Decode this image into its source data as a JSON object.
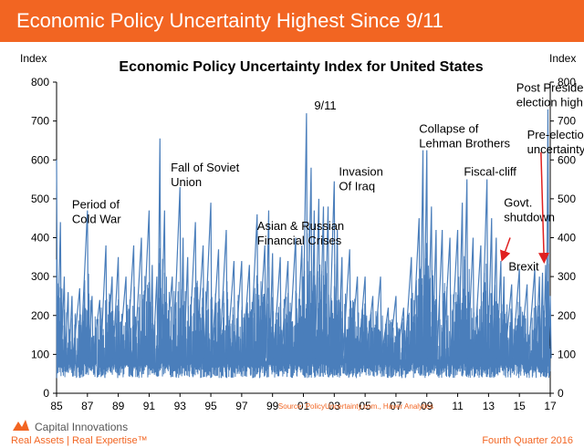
{
  "banner": {
    "title": "Economic Policy Uncertainty Highest Since 9/11"
  },
  "footer": {
    "brand": "Capital Innovations",
    "tagline": "Real Assets | Real Expertise™",
    "date": "Fourth Quarter 2016"
  },
  "colors": {
    "banner": "#f26522",
    "series": "#4a7ebb",
    "arrow": "#e02020",
    "text": "#000000"
  },
  "chart_data": {
    "type": "line",
    "title": "Economic Policy Uncertainty Index for United States",
    "ylabel_left": "Index",
    "ylabel_right": "Index",
    "xlabel": "",
    "source": "Source: PolicyUncertainty.com., Haver Analytics",
    "ylim": [
      0,
      800
    ],
    "yticks": [
      0,
      100,
      200,
      300,
      400,
      500,
      600,
      700,
      800
    ],
    "xlim": [
      1985,
      2017
    ],
    "xticks": [
      1985,
      1987,
      1989,
      1991,
      1993,
      1995,
      1997,
      1999,
      2001,
      2003,
      2005,
      2007,
      2009,
      2011,
      2013,
      2015,
      2017
    ],
    "xtick_labels": [
      "85",
      "87",
      "89",
      "91",
      "93",
      "95",
      "97",
      "99",
      "01",
      "03",
      "05",
      "07",
      "09",
      "11",
      "13",
      "15",
      "17"
    ],
    "grid": false,
    "series": [
      {
        "name": "Economic Policy Uncertainty Index",
        "x": [
          1985.0,
          1985.25,
          1985.5,
          1985.75,
          1986.0,
          1986.5,
          1987.0,
          1987.3,
          1987.8,
          1988.2,
          1988.6,
          1989.0,
          1989.5,
          1990.0,
          1990.5,
          1991.0,
          1991.2,
          1991.5,
          1991.7,
          1992.0,
          1992.5,
          1993.0,
          1993.2,
          1993.5,
          1994.0,
          1994.5,
          1995.0,
          1995.5,
          1996.0,
          1996.5,
          1997.0,
          1997.5,
          1998.0,
          1998.5,
          1998.75,
          1999.0,
          1999.5,
          2000.0,
          2000.5,
          2000.9,
          2001.2,
          2001.5,
          2001.7,
          2002.0,
          2002.3,
          2002.6,
          2003.0,
          2003.2,
          2003.5,
          2004.0,
          2004.5,
          2005.0,
          2005.5,
          2006.0,
          2006.5,
          2007.0,
          2007.5,
          2008.0,
          2008.5,
          2008.75,
          2009.0,
          2009.3,
          2009.6,
          2010.0,
          2010.5,
          2011.0,
          2011.3,
          2011.6,
          2012.0,
          2012.5,
          2012.9,
          2013.2,
          2013.5,
          2013.8,
          2014.0,
          2014.5,
          2015.0,
          2015.5,
          2016.0,
          2016.3,
          2016.5,
          2016.7,
          2016.85,
          2017.0
        ],
        "y": [
          600,
          440,
          300,
          260,
          250,
          270,
          470,
          250,
          240,
          380,
          300,
          350,
          300,
          380,
          400,
          470,
          330,
          300,
          655,
          470,
          300,
          530,
          400,
          350,
          440,
          380,
          490,
          370,
          420,
          340,
          340,
          330,
          460,
          380,
          470,
          360,
          350,
          340,
          400,
          380,
          720,
          580,
          470,
          500,
          480,
          480,
          545,
          420,
          350,
          370,
          300,
          300,
          250,
          300,
          220,
          250,
          220,
          350,
          450,
          625,
          625,
          480,
          420,
          420,
          400,
          420,
          490,
          550,
          400,
          380,
          550,
          450,
          400,
          340,
          300,
          280,
          320,
          280,
          320,
          300,
          310,
          330,
          730,
          250
        ]
      }
    ],
    "annotations": [
      {
        "text": "Period of Cold War",
        "x": 1986.0,
        "y": 475
      },
      {
        "text": "Fall of Soviet Union",
        "x": 1992.4,
        "y": 570
      },
      {
        "text": "Asian & Russian Financial Crises",
        "x": 1998.0,
        "y": 420
      },
      {
        "text": "9/11",
        "x": 2001.7,
        "y": 730
      },
      {
        "text": "Invasion Of Iraq",
        "x": 2003.3,
        "y": 560
      },
      {
        "text": "Collapse of Lehman Brothers",
        "x": 2008.5,
        "y": 670
      },
      {
        "text": "Fiscal-cliff",
        "x": 2011.4,
        "y": 560
      },
      {
        "text": "Post Presidential election high",
        "x": 2014.8,
        "y": 775
      },
      {
        "text": "Pre-election uncertainty",
        "x": 2015.5,
        "y": 655
      },
      {
        "text": "Govt. shutdown",
        "x": 2014.0,
        "y": 480
      },
      {
        "text": "Brexit",
        "x": 2014.3,
        "y": 315
      }
    ],
    "arrows": [
      {
        "from": [
          2014.4,
          400
        ],
        "to": [
          2013.9,
          345
        ]
      },
      {
        "from": [
          2016.4,
          620
        ],
        "to": [
          2016.6,
          340
        ]
      }
    ]
  }
}
